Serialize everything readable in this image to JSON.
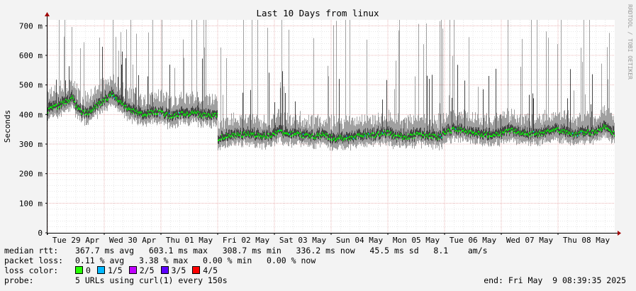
{
  "chart_data": {
    "type": "area",
    "title": "Last 10 Days from linux",
    "ylabel": "Seconds",
    "xlabel": "",
    "ylim_ms": [
      0,
      720
    ],
    "yticks": [
      {
        "value": 0,
        "label": "0"
      },
      {
        "value": 100,
        "label": "100 m"
      },
      {
        "value": 200,
        "label": "200 m"
      },
      {
        "value": 300,
        "label": "300 m"
      },
      {
        "value": 400,
        "label": "400 m"
      },
      {
        "value": 500,
        "label": "500 m"
      },
      {
        "value": 600,
        "label": "600 m"
      },
      {
        "value": 700,
        "label": "700 m"
      }
    ],
    "xticks": [
      "Tue 29 Apr",
      "Wed 30 Apr",
      "Thu 01 May",
      "Fri 02 May",
      "Sat 03 May",
      "Sun 04 May",
      "Mon 05 May",
      "Tue 06 May",
      "Wed 07 May",
      "Thu 08 May"
    ],
    "grid": true,
    "watermark": "RRDTOOL / TOBI OETIKER",
    "colors": {
      "background": "#f3f3f3",
      "canvas": "#ffffff",
      "smoke_outer": "#a0a0a0",
      "smoke_inner": "#444444",
      "median": "#00ff00",
      "major_grid": "#e5a5a5",
      "minor_grid": "#d8d8d8",
      "arrow": "#a00000"
    },
    "series": [
      {
        "name": "median rtt",
        "segments": [
          {
            "from": "Tue 29 Apr",
            "to": "Fri 02 May",
            "median_ms": [
              415,
              425,
              440,
              455,
              410,
              405,
              430,
              450,
              470,
              440,
              420,
              405,
              400,
              410,
              405,
              395,
              400,
              400,
              405,
              398,
              400,
              395
            ]
          },
          {
            "from": "Fri 02 May",
            "to": "Thu 08 May end",
            "median_ms": [
              320,
              330,
              330,
              335,
              325,
              330,
              340,
              335,
              330,
              325,
              330,
              320,
              320,
              325,
              330,
              330,
              340,
              325,
              325,
              330,
              330,
              320,
              345,
              350,
              340,
              335,
              330,
              335,
              345,
              340,
              335,
              335,
              350,
              345,
              330,
              340,
              340,
              360,
              330
            ]
          }
        ]
      }
    ]
  },
  "footer": {
    "median_label": "median rtt:",
    "median_text": "367.7 ms avg   603.1 ms max   308.7 ms min   336.2 ms now   45.5 ms sd   8.1    am/s",
    "loss_label": "packet loss:",
    "loss_text": "0.11 % avg   3.38 % max   0.00 % min   0.00 % now",
    "color_label": "loss color:",
    "loss_colors": [
      {
        "label": "0",
        "color": "#26ff00"
      },
      {
        "label": "1/5",
        "color": "#00b8ff"
      },
      {
        "label": "2/5",
        "color": "#c000ff"
      },
      {
        "label": "3/5",
        "color": "#5d00ff"
      },
      {
        "label": "4/5",
        "color": "#ff0000"
      }
    ],
    "probe_label": "probe:",
    "probe_text": "5 URLs using curl(1) every 150s",
    "end_text": "end: Fri May  9 08:39:35 2025"
  }
}
